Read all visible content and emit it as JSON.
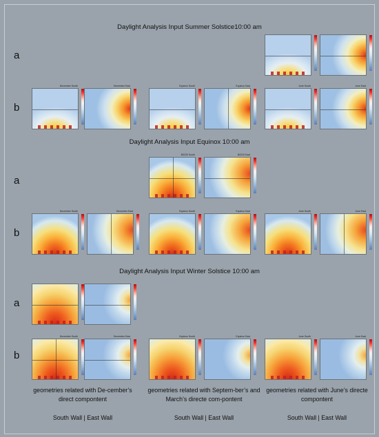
{
  "sections": [
    {
      "title": "Daylight Analysis Input Summer Solstice10:00 am",
      "row_a": "a",
      "row_b": "b"
    },
    {
      "title": "Daylight Analysis Input Equinox 10:00 am",
      "row_a": "a",
      "row_b": "b"
    },
    {
      "title": "Daylight Analysis Input Winter Solstice 10:00 am",
      "row_a": "a",
      "row_b": "b"
    }
  ],
  "map_titles": {
    "december_south": "December South",
    "december_east": "December East",
    "equinox_south": "Equinox South",
    "equinox_east": "Equinox East",
    "june_south": "June South",
    "june_east": "June East",
    "b0220_south": "B0220 South",
    "b0220_east": "B0220 East"
  },
  "captions": [
    {
      "text": "geometries related with De-cember’s direct compontent",
      "walls": "South Wall | East Wall"
    },
    {
      "text": "geometries related with Septem-ber’s and March’s directe com-pontent",
      "walls": "South Wall | East Wall"
    },
    {
      "text": "geometries related with June’s directe compontent",
      "walls": "South Wall | East Wall"
    }
  ]
}
